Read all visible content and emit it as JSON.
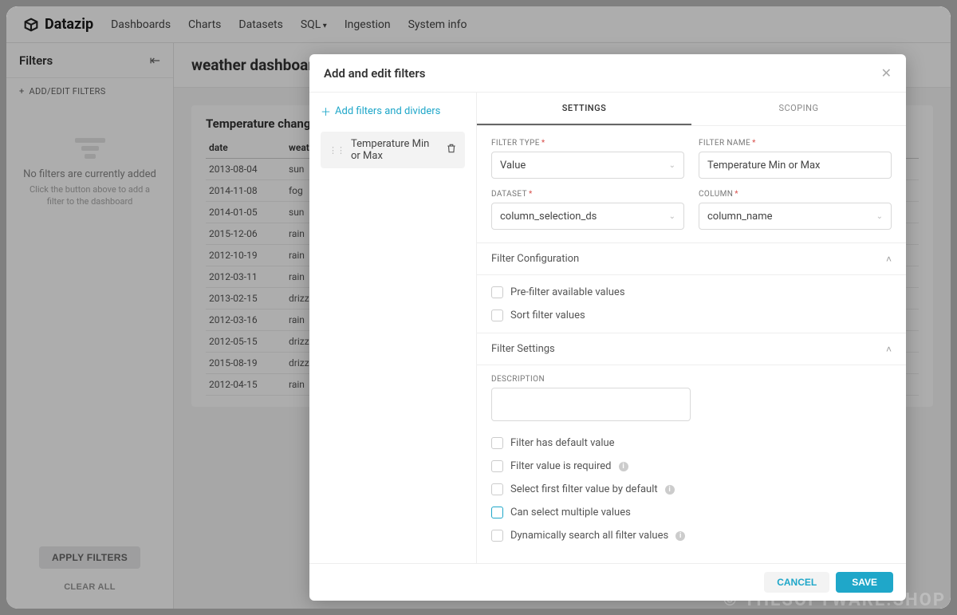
{
  "brand": "Datazip",
  "nav": {
    "dashboards": "Dashboards",
    "charts": "Charts",
    "datasets": "Datasets",
    "sql": "SQL",
    "ingestion": "Ingestion",
    "systeminfo": "System info"
  },
  "sidebar": {
    "title": "Filters",
    "addedit": "ADD/EDIT FILTERS",
    "empty_title": "No filters are currently added",
    "empty_sub": "Click the button above to add a filter to the dashboard",
    "apply": "APPLY FILTERS",
    "clear": "CLEAR ALL"
  },
  "dashboard": {
    "title": "weather dashboard",
    "card_title": "Temperature changing",
    "columns": [
      "date",
      "weather"
    ],
    "rows": [
      [
        "2013-08-04",
        "sun"
      ],
      [
        "2014-11-08",
        "fog"
      ],
      [
        "2014-01-05",
        "sun"
      ],
      [
        "2015-12-06",
        "rain"
      ],
      [
        "2012-10-19",
        "rain"
      ],
      [
        "2012-03-11",
        "rain"
      ],
      [
        "2013-02-15",
        "drizzle"
      ],
      [
        "2012-03-16",
        "rain"
      ],
      [
        "2012-05-15",
        "drizzle"
      ],
      [
        "2015-08-19",
        "drizzle"
      ],
      [
        "2012-04-15",
        "rain"
      ]
    ]
  },
  "modal": {
    "title": "Add and edit filters",
    "add_link": "Add filters and dividers",
    "chip": "Temperature Min or Max",
    "tabs": {
      "settings": "SETTINGS",
      "scoping": "SCOPING"
    },
    "labels": {
      "filter_type": "FILTER TYPE",
      "filter_name": "FILTER NAME",
      "dataset": "DATASET",
      "column": "COLUMN",
      "filter_config": "Filter Configuration",
      "filter_settings": "Filter Settings",
      "description": "DESCRIPTION"
    },
    "values": {
      "filter_type": "Value",
      "filter_name": "Temperature Min or Max",
      "dataset": "column_selection_ds",
      "column": "column_name"
    },
    "checks": {
      "prefilter": "Pre-filter available values",
      "sort": "Sort filter values",
      "has_default": "Filter has default value",
      "required": "Filter value is required",
      "select_first": "Select first filter value by default",
      "multiple": "Can select multiple values",
      "dynamic": "Dynamically search all filter values"
    },
    "buttons": {
      "cancel": "CANCEL",
      "save": "SAVE"
    }
  },
  "watermark": "© THESOFTWARE.SHOP",
  "colors": {
    "accent": "#1fa7c9",
    "border": "#d9d9d9",
    "text_muted": "#888"
  }
}
